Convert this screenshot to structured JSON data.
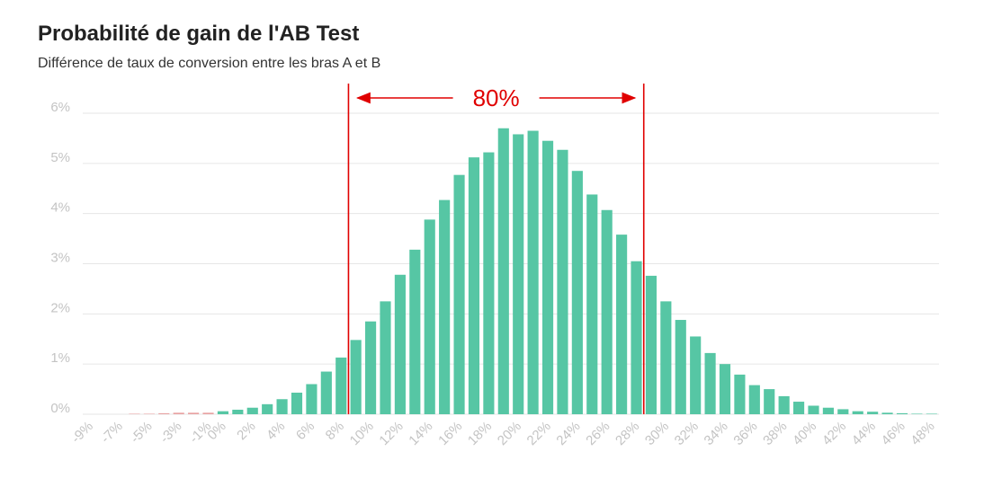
{
  "title": "Probabilité de gain de l'AB Test",
  "subtitle": "Différence de taux de conversion entre les bras A et B",
  "annotation": {
    "label": "80%",
    "color": "#e00000"
  },
  "colors": {
    "bar": "#56c6a4",
    "grid": "#e6e6e6",
    "tick_text": "#c4c4c4",
    "negative_bar": "#e8a3a3"
  },
  "chart_data": {
    "type": "bar",
    "title": "Probabilité de gain de l'AB Test",
    "subtitle": "Différence de taux de conversion entre les bras A et B",
    "xlabel": "",
    "ylabel": "",
    "ylim": [
      0,
      6
    ],
    "y_ticks": [
      "0%",
      "1%",
      "2%",
      "3%",
      "4%",
      "5%",
      "6%"
    ],
    "x_tick_labels": [
      "-9%",
      "-7%",
      "-5%",
      "-3%",
      "-1%",
      "0%",
      "2%",
      "4%",
      "6%",
      "8%",
      "10%",
      "12%",
      "14%",
      "16%",
      "18%",
      "20%",
      "22%",
      "24%",
      "26%",
      "28%",
      "30%",
      "32%",
      "34%",
      "36%",
      "38%",
      "40%",
      "42%",
      "44%",
      "46%",
      "48%"
    ],
    "x": [
      -9,
      -8,
      -7,
      -6,
      -5,
      -4,
      -3,
      -2,
      -1,
      0,
      1,
      2,
      3,
      4,
      5,
      6,
      7,
      8,
      9,
      10,
      11,
      12,
      13,
      14,
      15,
      16,
      17,
      18,
      19,
      20,
      21,
      22,
      23,
      24,
      25,
      26,
      27,
      28,
      29,
      30,
      31,
      32,
      33,
      34,
      35,
      36,
      37,
      38,
      39,
      40,
      41,
      42,
      43,
      44,
      45,
      46,
      47,
      48
    ],
    "values": [
      0,
      0,
      0,
      0.01,
      0.01,
      0.02,
      0.03,
      0.03,
      0.03,
      0.06,
      0.09,
      0.13,
      0.2,
      0.3,
      0.43,
      0.6,
      0.85,
      1.13,
      1.48,
      1.85,
      2.25,
      2.78,
      3.28,
      3.88,
      4.27,
      4.77,
      5.12,
      5.22,
      5.7,
      5.58,
      5.65,
      5.45,
      5.27,
      4.85,
      4.38,
      4.07,
      3.58,
      3.05,
      2.76,
      2.25,
      1.88,
      1.55,
      1.22,
      1.0,
      0.79,
      0.58,
      0.5,
      0.36,
      0.25,
      0.17,
      0.13,
      0.1,
      0.06,
      0.05,
      0.03,
      0.02,
      0.01,
      0.01
    ],
    "interval": {
      "low": 9,
      "high": 29,
      "label": "80%"
    },
    "grid": true
  }
}
